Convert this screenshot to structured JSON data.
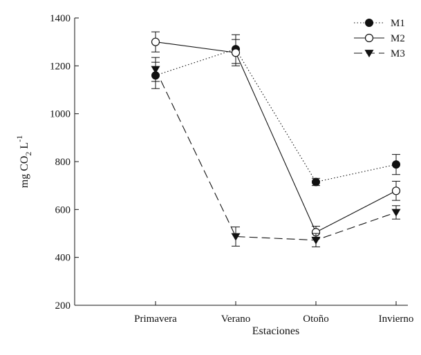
{
  "chart_data": {
    "type": "line",
    "categories": [
      "Primavera",
      "Verano",
      "Otoño",
      "Invierno"
    ],
    "xlabel": "Estaciones",
    "ylabel": {
      "base": "mg CO",
      "sub": "2",
      "after": " L",
      "sup": "-1"
    },
    "ylim": [
      200,
      1400
    ],
    "yticks": [
      200,
      400,
      600,
      800,
      1000,
      1200,
      1400
    ],
    "grid": false,
    "legend_position": "top-right",
    "series": [
      {
        "name": "M1",
        "marker": "filled-circle",
        "line": "dotted",
        "values": [
          1160,
          1270,
          715,
          788
        ],
        "errors": [
          55,
          60,
          15,
          42
        ]
      },
      {
        "name": "M2",
        "marker": "open-circle",
        "line": "solid",
        "values": [
          1300,
          1255,
          505,
          678
        ],
        "errors": [
          42,
          55,
          25,
          40
        ]
      },
      {
        "name": "M3",
        "marker": "filled-triangle-down",
        "line": "dashed",
        "values": [
          1185,
          487,
          472,
          588
        ],
        "errors": [
          50,
          40,
          28,
          28
        ]
      }
    ]
  }
}
